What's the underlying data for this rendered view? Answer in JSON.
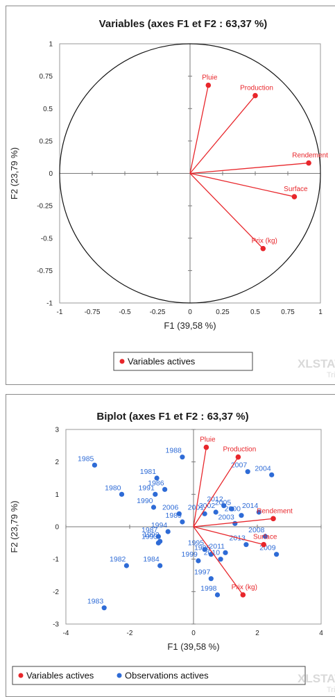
{
  "colors": {
    "variables": "#e8262b",
    "observations": "#2e6bd6"
  },
  "watermark": {
    "brand": "XLSTAT",
    "sub": "Trial"
  },
  "chart_data": [
    {
      "type": "scatter",
      "title": "Variables (axes F1 et F2 : 63,37 %)",
      "xlabel": "F1 (39,58 %)",
      "ylabel": "F2 (23,79 %)",
      "xlim": [
        -1,
        1
      ],
      "ylim": [
        -1,
        1
      ],
      "xticks": [
        "-1",
        "-0.75",
        "-0.5",
        "-0.25",
        "0",
        "0.25",
        "0.5",
        "0.75",
        "1"
      ],
      "yticks": [
        "1",
        "0.75",
        "0.5",
        "0.25",
        "0",
        "-0.25",
        "-0.5",
        "-0.75",
        "-1"
      ],
      "correlation_circle": true,
      "legend": {
        "position": "bottom",
        "entries": [
          "Variables actives"
        ]
      },
      "variables": [
        {
          "label": "Pluie",
          "x": 0.14,
          "y": 0.68
        },
        {
          "label": "Production",
          "x": 0.5,
          "y": 0.6
        },
        {
          "label": "Rendement",
          "x": 0.91,
          "y": 0.08
        },
        {
          "label": "Surface",
          "x": 0.8,
          "y": -0.18
        },
        {
          "label": "Prix (kg)",
          "x": 0.56,
          "y": -0.58
        }
      ]
    },
    {
      "type": "scatter",
      "title": "Biplot (axes F1 et F2 : 63,37 %)",
      "xlabel": "F1 (39,58 %)",
      "ylabel": "F2 (23,79 %)",
      "xlim": [
        -4,
        4
      ],
      "ylim": [
        -3,
        3
      ],
      "xticks": [
        "-4",
        "-2",
        "0",
        "2",
        "4"
      ],
      "yticks": [
        "3",
        "2",
        "1",
        "0",
        "-1",
        "-2",
        "-3"
      ],
      "legend": {
        "position": "bottom",
        "entries": [
          "Variables actives",
          "Observations actives"
        ]
      },
      "variables": [
        {
          "label": "Pluie",
          "x": 0.4,
          "y": 2.45
        },
        {
          "label": "Production",
          "x": 1.4,
          "y": 2.15
        },
        {
          "label": "Rendement",
          "x": 2.5,
          "y": 0.25
        },
        {
          "label": "Surface",
          "x": 2.2,
          "y": -0.55
        },
        {
          "label": "Prix (kg)",
          "x": 1.55,
          "y": -2.1
        }
      ],
      "observations": [
        {
          "label": "1985",
          "x": -3.1,
          "y": 1.9
        },
        {
          "label": "1988",
          "x": -0.35,
          "y": 2.15
        },
        {
          "label": "1981",
          "x": -1.15,
          "y": 1.5
        },
        {
          "label": "1980",
          "x": -2.25,
          "y": 1.0
        },
        {
          "label": "1986",
          "x": -0.9,
          "y": 1.15
        },
        {
          "label": "1991",
          "x": -1.2,
          "y": 1.0
        },
        {
          "label": "1990",
          "x": -1.25,
          "y": 0.6
        },
        {
          "label": "2006",
          "x": -0.45,
          "y": 0.4
        },
        {
          "label": "1989",
          "x": -0.35,
          "y": 0.15
        },
        {
          "label": "1994",
          "x": -0.8,
          "y": -0.15
        },
        {
          "label": "1987",
          "x": -1.1,
          "y": -0.3
        },
        {
          "label": "1992",
          "x": -1.05,
          "y": -0.45
        },
        {
          "label": "1993",
          "x": -1.1,
          "y": -0.5
        },
        {
          "label": "1982",
          "x": -2.1,
          "y": -1.2
        },
        {
          "label": "1984",
          "x": -1.05,
          "y": -1.2
        },
        {
          "label": "1983",
          "x": -2.8,
          "y": -2.5
        },
        {
          "label": "2001",
          "x": 0.35,
          "y": 0.4
        },
        {
          "label": "2005",
          "x": 1.2,
          "y": 0.55
        },
        {
          "label": "2002",
          "x": 0.7,
          "y": 0.45
        },
        {
          "label": "2012",
          "x": 0.95,
          "y": 0.65
        },
        {
          "label": "2003",
          "x": 1.3,
          "y": 0.1
        },
        {
          "label": "2000",
          "x": 1.5,
          "y": 0.35
        },
        {
          "label": "2014",
          "x": 2.05,
          "y": 0.45
        },
        {
          "label": "2007",
          "x": 1.7,
          "y": 1.7
        },
        {
          "label": "2004",
          "x": 2.45,
          "y": 1.6
        },
        {
          "label": "2008",
          "x": 2.25,
          "y": -0.3
        },
        {
          "label": "2013",
          "x": 1.65,
          "y": -0.55
        },
        {
          "label": "2009",
          "x": 2.6,
          "y": -0.85
        },
        {
          "label": "1996",
          "x": 0.55,
          "y": -0.85
        },
        {
          "label": "1995",
          "x": 0.35,
          "y": -0.7
        },
        {
          "label": "2010",
          "x": 0.85,
          "y": -1.0
        },
        {
          "label": "2011",
          "x": 1.0,
          "y": -0.8
        },
        {
          "label": "1999",
          "x": 0.15,
          "y": -1.05
        },
        {
          "label": "1997",
          "x": 0.55,
          "y": -1.6
        },
        {
          "label": "1998",
          "x": 0.75,
          "y": -2.1
        }
      ]
    }
  ]
}
